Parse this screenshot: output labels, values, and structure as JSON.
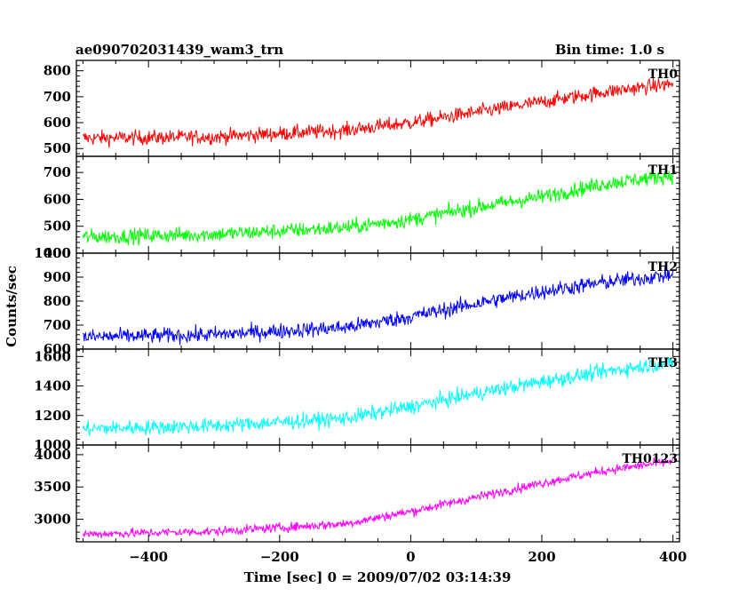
{
  "header": {
    "title": "ae090702031439_wam3_trn",
    "bin_time": "Bin time: 1.0 s"
  },
  "chart_data": {
    "type": "line",
    "title": "ae090702031439_wam3_trn",
    "xlabel": "Time [sec] 0 = 2009/07/02 03:14:39",
    "ylabel": "Counts/sec",
    "xlim": [
      -510,
      410
    ],
    "xticks": [
      -400,
      -200,
      0,
      200,
      400
    ],
    "xtick_labels": [
      "−400",
      "−200",
      "0",
      "200",
      "400"
    ],
    "panels": [
      {
        "name": "TH0",
        "color": "#ff0000",
        "ylim": [
          470,
          840
        ],
        "yticks": [
          500,
          600,
          700,
          800
        ],
        "trend": [
          [
            -500,
            540
          ],
          [
            -300,
            545
          ],
          [
            -100,
            570
          ],
          [
            0,
            600
          ],
          [
            100,
            640
          ],
          [
            200,
            680
          ],
          [
            300,
            720
          ],
          [
            400,
            750
          ]
        ],
        "noise": 28
      },
      {
        "name": "TH1",
        "color": "#00ff00",
        "ylim": [
          400,
          760
        ],
        "yticks": [
          400,
          500,
          600,
          700
        ],
        "trend": [
          [
            -500,
            460
          ],
          [
            -300,
            470
          ],
          [
            -100,
            495
          ],
          [
            0,
            525
          ],
          [
            100,
            570
          ],
          [
            200,
            610
          ],
          [
            300,
            660
          ],
          [
            400,
            690
          ]
        ],
        "noise": 28
      },
      {
        "name": "TH2",
        "color": "#0000ff",
        "ylim": [
          600,
          1000
        ],
        "yticks": [
          600,
          700,
          800,
          900,
          1000
        ],
        "trend": [
          [
            -500,
            650
          ],
          [
            -300,
            660
          ],
          [
            -100,
            690
          ],
          [
            0,
            735
          ],
          [
            100,
            790
          ],
          [
            200,
            840
          ],
          [
            300,
            880
          ],
          [
            400,
            910
          ]
        ],
        "noise": 32
      },
      {
        "name": "TH3",
        "color": "#00ffff",
        "ylim": [
          1000,
          1650
        ],
        "yticks": [
          1000,
          1200,
          1400,
          1600
        ],
        "trend": [
          [
            -500,
            1110
          ],
          [
            -300,
            1130
          ],
          [
            -100,
            1180
          ],
          [
            0,
            1260
          ],
          [
            100,
            1350
          ],
          [
            200,
            1430
          ],
          [
            300,
            1500
          ],
          [
            400,
            1560
          ]
        ],
        "noise": 50
      },
      {
        "name": "TH0123",
        "color": "#ff00ff",
        "ylim": [
          2650,
          4150
        ],
        "yticks": [
          3000,
          3500,
          4000
        ],
        "trend": [
          [
            -500,
            2770
          ],
          [
            -300,
            2810
          ],
          [
            -100,
            2930
          ],
          [
            0,
            3120
          ],
          [
            100,
            3340
          ],
          [
            200,
            3560
          ],
          [
            300,
            3760
          ],
          [
            400,
            3900
          ]
        ],
        "noise": 70
      }
    ]
  }
}
